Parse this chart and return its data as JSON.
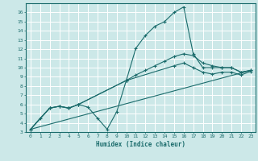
{
  "background_color": "#cce8e8",
  "grid_color": "#ffffff",
  "line_color": "#1a6b6b",
  "xlabel": "Humidex (Indice chaleur)",
  "xlim": [
    -0.5,
    23.5
  ],
  "ylim": [
    3,
    17
  ],
  "xticks": [
    0,
    1,
    2,
    3,
    4,
    5,
    6,
    7,
    8,
    9,
    10,
    11,
    12,
    13,
    14,
    15,
    16,
    17,
    18,
    19,
    20,
    21,
    22,
    23
  ],
  "yticks": [
    3,
    4,
    5,
    6,
    7,
    8,
    9,
    10,
    11,
    12,
    13,
    14,
    15,
    16
  ],
  "lines": [
    {
      "x": [
        0,
        1,
        2,
        3,
        4,
        5,
        6,
        7,
        8,
        9,
        10,
        11,
        12,
        13,
        14,
        15,
        16,
        17,
        18,
        19,
        20,
        21,
        22,
        23
      ],
      "y": [
        3.3,
        4.5,
        5.6,
        5.8,
        5.6,
        6.0,
        5.7,
        4.5,
        3.3,
        5.2,
        8.6,
        12.1,
        13.5,
        14.5,
        15.0,
        16.0,
        16.6,
        11.5,
        10.0,
        10.0,
        10.0,
        10.0,
        9.5,
        9.7
      ]
    },
    {
      "x": [
        0,
        2,
        3,
        4,
        5,
        10,
        11,
        12,
        13,
        14,
        15,
        16,
        17,
        18,
        19,
        20,
        21,
        22,
        23
      ],
      "y": [
        3.3,
        5.6,
        5.8,
        5.6,
        6.0,
        8.6,
        9.2,
        9.7,
        10.2,
        10.7,
        11.2,
        11.5,
        11.3,
        10.5,
        10.2,
        10.0,
        10.0,
        9.5,
        9.7
      ]
    },
    {
      "x": [
        0,
        2,
        3,
        4,
        5,
        10,
        15,
        16,
        17,
        18,
        19,
        20,
        21,
        22,
        23
      ],
      "y": [
        3.3,
        5.6,
        5.8,
        5.6,
        6.0,
        8.6,
        10.2,
        10.5,
        10.0,
        9.5,
        9.3,
        9.5,
        9.5,
        9.2,
        9.6
      ]
    },
    {
      "x": [
        0,
        23
      ],
      "y": [
        3.3,
        9.7
      ]
    }
  ]
}
